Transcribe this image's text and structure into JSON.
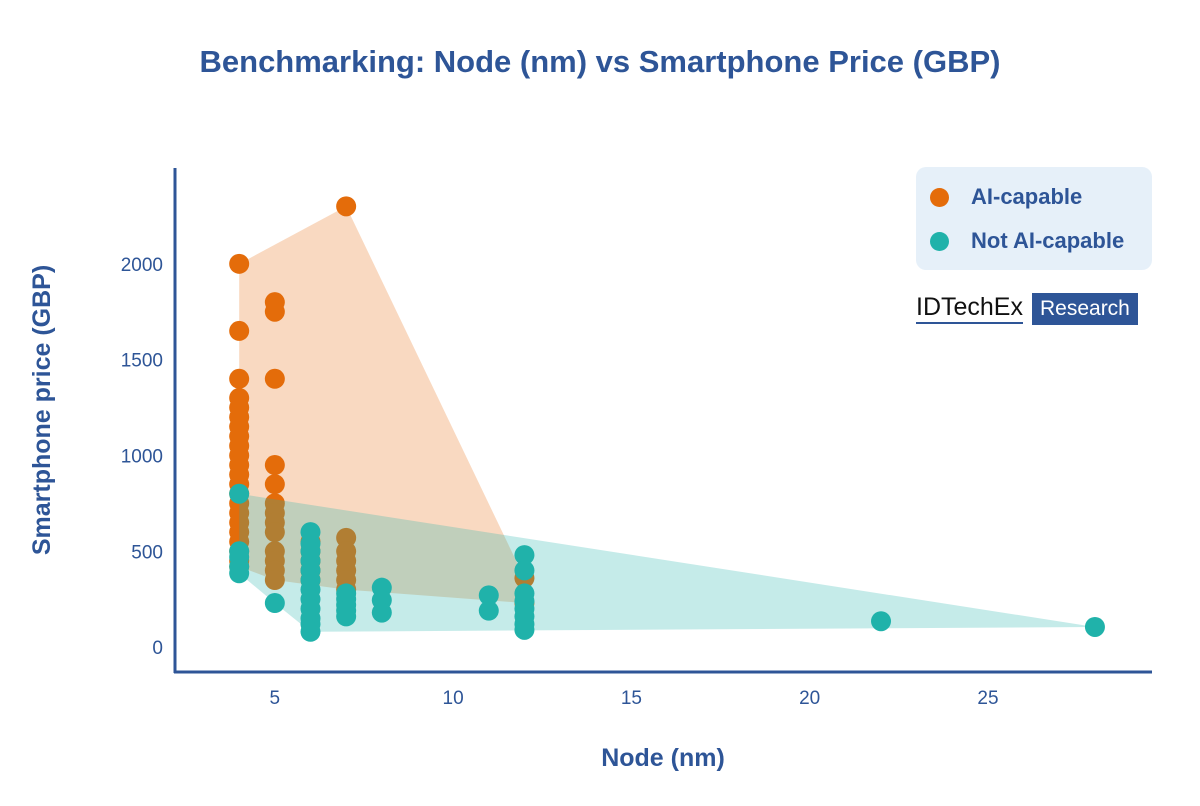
{
  "chart_data": {
    "type": "scatter",
    "title": "Benchmarking: Node (nm) vs Smartphone Price (GBP)",
    "xlabel": "Node (nm)",
    "ylabel": "Smartphone price (GBP)",
    "xlim": [
      2.2,
      29.6
    ],
    "ylim": [
      -130,
      2500
    ],
    "xticks": [
      5,
      10,
      15,
      20,
      25
    ],
    "yticks": [
      0,
      500,
      1000,
      1500,
      2000
    ],
    "grid": false,
    "legend_position": "top-right",
    "convex_hulls": true,
    "series": [
      {
        "name": "AI-capable",
        "color": "#E46C0A",
        "points": [
          [
            4,
            2000
          ],
          [
            4,
            1650
          ],
          [
            4,
            1400
          ],
          [
            4,
            1300
          ],
          [
            4,
            1250
          ],
          [
            4,
            1200
          ],
          [
            4,
            1150
          ],
          [
            4,
            1100
          ],
          [
            4,
            1050
          ],
          [
            4,
            1000
          ],
          [
            4,
            950
          ],
          [
            4,
            900
          ],
          [
            4,
            850
          ],
          [
            4,
            800
          ],
          [
            4,
            750
          ],
          [
            4,
            700
          ],
          [
            4,
            650
          ],
          [
            4,
            600
          ],
          [
            4,
            550
          ],
          [
            4,
            500
          ],
          [
            4,
            450
          ],
          [
            4,
            420
          ],
          [
            5,
            1800
          ],
          [
            5,
            1750
          ],
          [
            5,
            1400
          ],
          [
            5,
            950
          ],
          [
            5,
            850
          ],
          [
            5,
            750
          ],
          [
            5,
            700
          ],
          [
            5,
            650
          ],
          [
            5,
            600
          ],
          [
            5,
            500
          ],
          [
            5,
            450
          ],
          [
            5,
            400
          ],
          [
            5,
            350
          ],
          [
            6,
            550
          ],
          [
            6,
            500
          ],
          [
            6,
            450
          ],
          [
            6,
            400
          ],
          [
            6,
            350
          ],
          [
            7,
            2300
          ],
          [
            7,
            570
          ],
          [
            7,
            500
          ],
          [
            7,
            450
          ],
          [
            7,
            400
          ],
          [
            7,
            350
          ],
          [
            7,
            300
          ],
          [
            12,
            360
          ],
          [
            12,
            230
          ]
        ]
      },
      {
        "name": "Not AI-capable",
        "color": "#20B2AA",
        "points": [
          [
            4,
            800
          ],
          [
            4,
            500
          ],
          [
            4,
            470
          ],
          [
            4,
            420
          ],
          [
            4,
            385
          ],
          [
            5,
            230
          ],
          [
            6,
            600
          ],
          [
            6,
            540
          ],
          [
            6,
            500
          ],
          [
            6,
            450
          ],
          [
            6,
            400
          ],
          [
            6,
            350
          ],
          [
            6,
            300
          ],
          [
            6,
            250
          ],
          [
            6,
            200
          ],
          [
            6,
            150
          ],
          [
            6,
            120
          ],
          [
            6,
            80
          ],
          [
            7,
            280
          ],
          [
            7,
            250
          ],
          [
            7,
            220
          ],
          [
            7,
            190
          ],
          [
            7,
            160
          ],
          [
            8,
            310
          ],
          [
            8,
            245
          ],
          [
            8,
            180
          ],
          [
            11,
            270
          ],
          [
            11,
            190
          ],
          [
            12,
            480
          ],
          [
            12,
            400
          ],
          [
            12,
            280
          ],
          [
            12,
            240
          ],
          [
            12,
            200
          ],
          [
            12,
            160
          ],
          [
            12,
            120
          ],
          [
            12,
            90
          ],
          [
            22,
            135
          ],
          [
            28,
            105
          ]
        ]
      }
    ]
  },
  "logo": {
    "name": "IDTechEx",
    "badge": "Research"
  }
}
